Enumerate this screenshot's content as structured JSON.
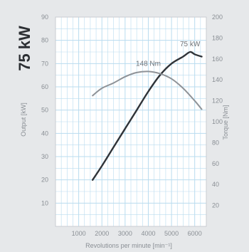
{
  "chart_data": {
    "type": "line",
    "headline": "75 kW",
    "title": "",
    "xlabel": "Revolutions per minute [min⁻¹]",
    "ylabel_left": "Output [kW]",
    "ylabel_right": "Torque [Nm]",
    "xlim": [
      0,
      6500
    ],
    "x_ticks": [
      1000,
      2000,
      3000,
      4000,
      5000,
      6000
    ],
    "ylim_left": [
      0,
      90
    ],
    "y_ticks_left": [
      10,
      20,
      30,
      40,
      50,
      60,
      70,
      80,
      90
    ],
    "ylim_right": [
      0,
      200
    ],
    "y_ticks_right": [
      20,
      40,
      60,
      80,
      100,
      120,
      140,
      160,
      180,
      200
    ],
    "grid": true,
    "annotations": [
      {
        "text": "148 Nm",
        "series": "torque"
      },
      {
        "text": "75 kW",
        "series": "output"
      }
    ],
    "colors": {
      "background": "#e6e8ea",
      "plot_background": "#ffffff",
      "grid": "#b9dcef",
      "output_line": "#2f3338",
      "torque_line": "#8e9297",
      "text": "#8a8f95"
    },
    "series": [
      {
        "key": "output",
        "axis": "left",
        "x": [
          1600,
          2000,
          2500,
          3000,
          3500,
          4000,
          4500,
          5000,
          5500,
          5800,
          6000,
          6300
        ],
        "y": [
          20,
          26,
          34,
          42,
          50,
          58,
          65,
          70,
          73,
          75,
          74,
          73
        ]
      },
      {
        "key": "torque",
        "axis": "right",
        "x": [
          1600,
          2000,
          2500,
          3000,
          3500,
          4000,
          4500,
          5000,
          5500,
          6000,
          6300
        ],
        "y": [
          125,
          132,
          137,
          143,
          147,
          148,
          146,
          141,
          132,
          120,
          112
        ]
      }
    ]
  }
}
